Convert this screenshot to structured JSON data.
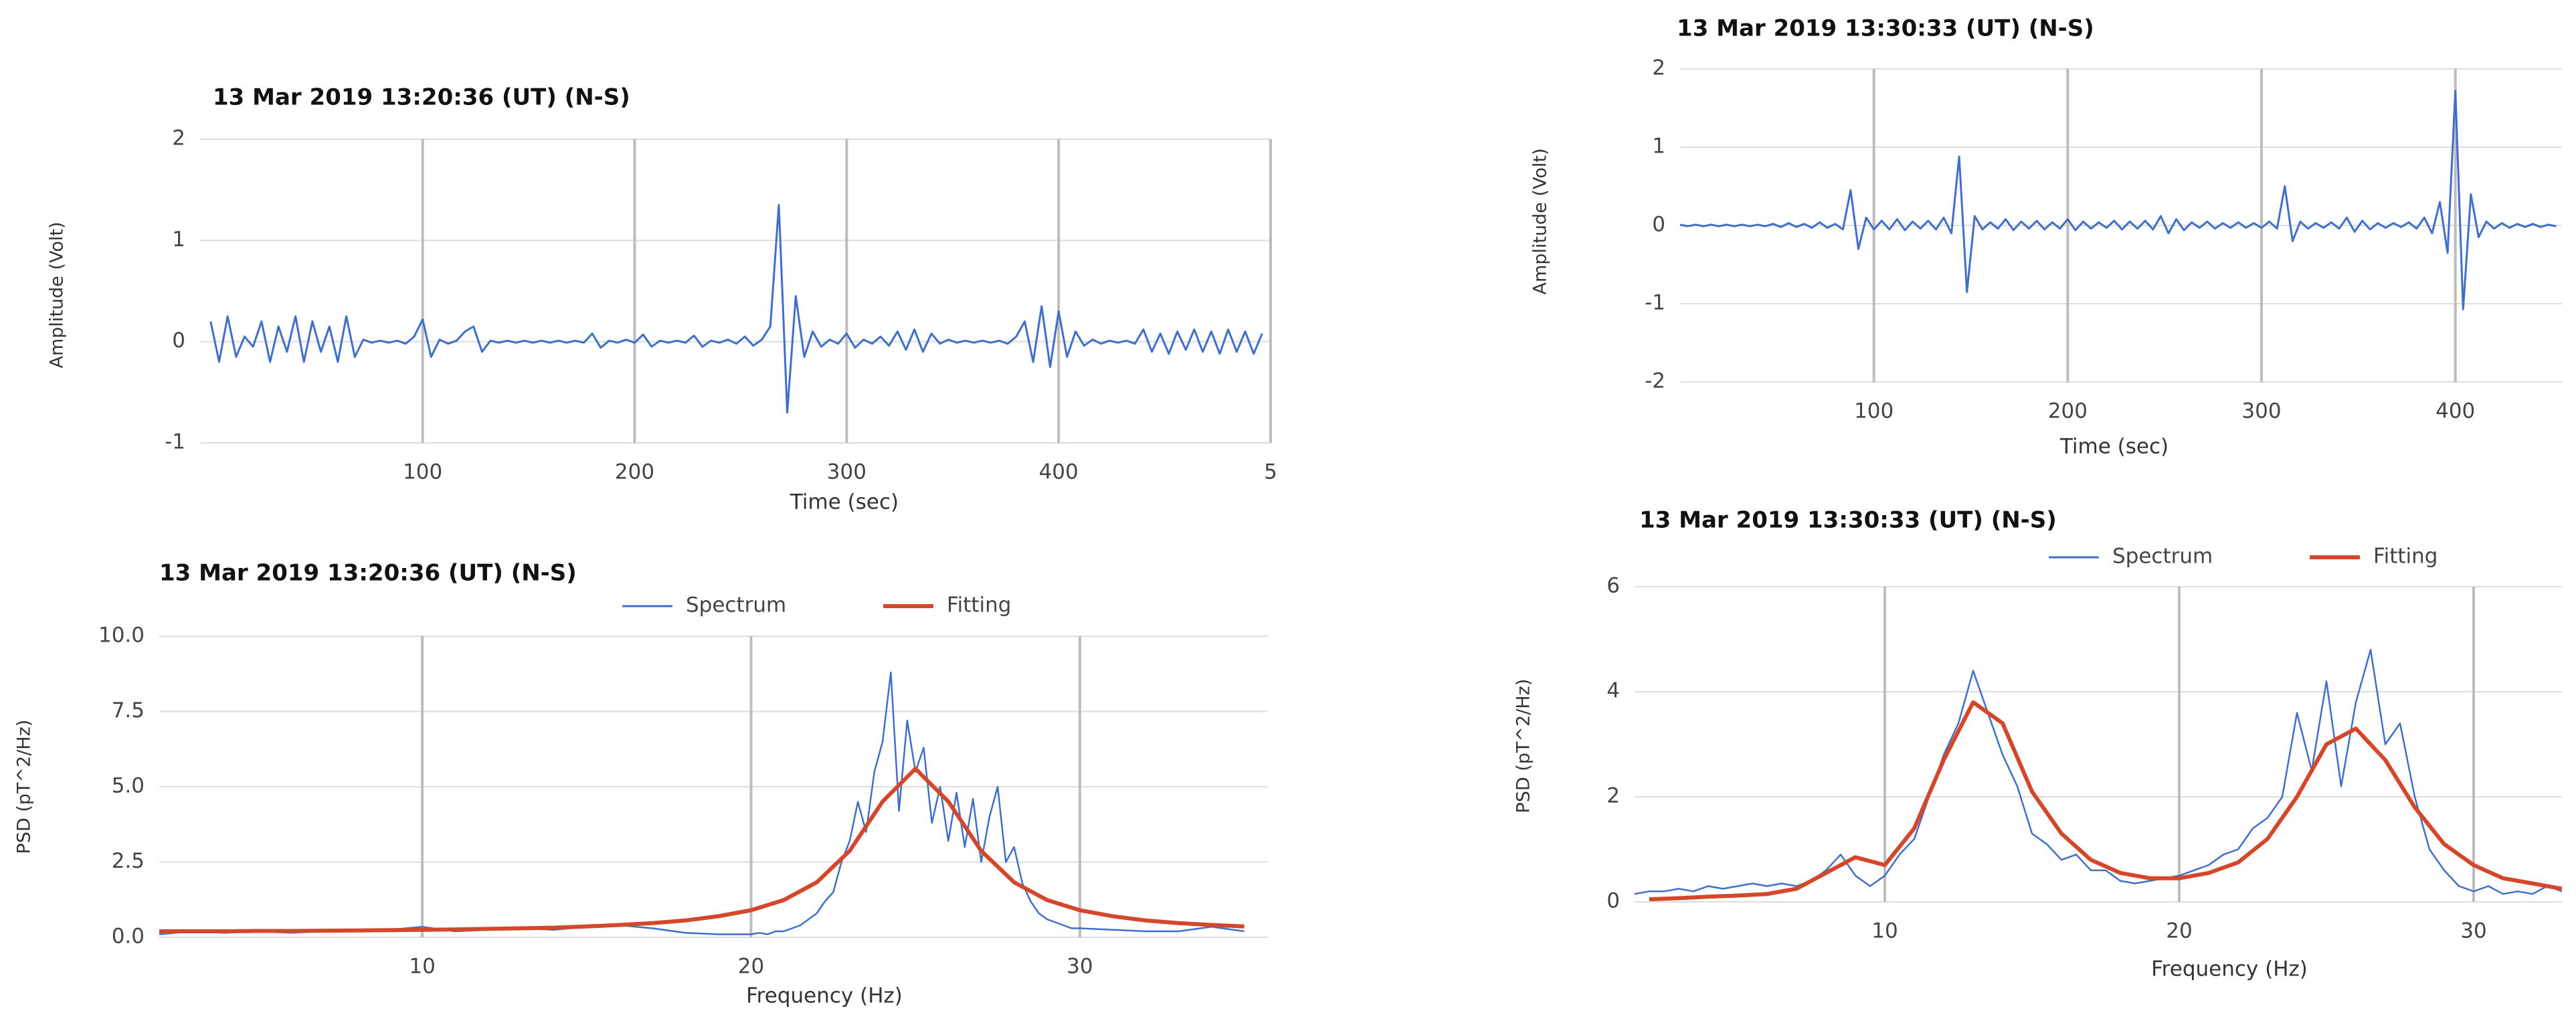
{
  "chart_data": [
    {
      "type": "line",
      "title": "13 Mar 2019  13:20:36 (UT) (N-S)",
      "x_label": "Time (sec)",
      "y_label": "Amplitude (Volt)",
      "color": "#3f6fc9",
      "x": [
        0,
        4,
        8,
        12,
        16,
        20,
        24,
        28,
        32,
        36,
        40,
        44,
        48,
        52,
        56,
        60,
        64,
        68,
        72,
        76,
        80,
        84,
        88,
        92,
        96,
        100,
        104,
        108,
        112,
        116,
        120,
        124,
        128,
        132,
        136,
        140,
        144,
        148,
        152,
        156,
        160,
        164,
        168,
        172,
        176,
        180,
        184,
        188,
        192,
        196,
        200,
        204,
        208,
        212,
        216,
        220,
        224,
        228,
        232,
        236,
        240,
        244,
        248,
        252,
        256,
        260,
        264,
        268,
        272,
        276,
        280,
        284,
        288,
        292,
        296,
        300,
        304,
        308,
        312,
        316,
        320,
        324,
        328,
        332,
        336,
        340,
        344,
        348,
        352,
        356,
        360,
        364,
        368,
        372,
        376,
        380,
        384,
        388,
        392,
        396,
        400,
        404,
        408,
        412,
        416,
        420,
        424,
        428,
        432,
        436,
        440,
        444,
        448,
        452,
        456,
        460,
        464,
        468,
        472,
        476,
        480,
        484,
        488,
        492,
        496
      ],
      "values": [
        0.2,
        -0.2,
        0.25,
        -0.15,
        0.05,
        -0.05,
        0.2,
        -0.2,
        0.15,
        -0.1,
        0.25,
        -0.2,
        0.2,
        -0.1,
        0.15,
        -0.2,
        0.25,
        -0.15,
        0.02,
        -0.01,
        0.01,
        -0.01,
        0.01,
        -0.02,
        0.05,
        0.22,
        -0.15,
        0.02,
        -0.02,
        0.01,
        0.1,
        0.15,
        -0.1,
        0.01,
        -0.01,
        0.01,
        -0.01,
        0.01,
        -0.01,
        0.01,
        -0.01,
        0.01,
        -0.01,
        0.01,
        -0.01,
        0.08,
        -0.06,
        0.01,
        -0.01,
        0.02,
        -0.01,
        0.07,
        -0.05,
        0.01,
        -0.01,
        0.01,
        -0.01,
        0.06,
        -0.05,
        0.01,
        -0.01,
        0.02,
        -0.02,
        0.05,
        -0.04,
        0.02,
        0.15,
        1.35,
        -0.7,
        0.45,
        -0.15,
        0.1,
        -0.05,
        0.02,
        -0.02,
        0.08,
        -0.06,
        0.02,
        -0.02,
        0.05,
        -0.04,
        0.1,
        -0.08,
        0.12,
        -0.1,
        0.08,
        -0.02,
        0.02,
        -0.01,
        0.01,
        -0.01,
        0.01,
        -0.01,
        0.01,
        -0.02,
        0.05,
        0.2,
        -0.2,
        0.35,
        -0.25,
        0.3,
        -0.15,
        0.1,
        -0.04,
        0.02,
        -0.02,
        0.01,
        -0.01,
        0.01,
        -0.02,
        0.12,
        -0.1,
        0.08,
        -0.12,
        0.1,
        -0.08,
        0.12,
        -0.1,
        0.1,
        -0.12,
        0.12,
        -0.1,
        0.1,
        -0.12,
        0.08
      ],
      "xlim": [
        -5,
        500
      ],
      "ylim": [
        -1,
        2
      ],
      "xticks": [
        100,
        200,
        300,
        400,
        {
          "value": 500,
          "label": "5"
        }
      ],
      "yticks": [
        -1,
        0,
        1,
        2
      ],
      "grid": true
    },
    {
      "type": "line",
      "title": "13 Mar 2019  13:30:33 (UT) (N-S)",
      "x_label": "Time (sec)",
      "y_label": "Amplitude (Volt)",
      "color": "#3f6fc9",
      "x": [
        0,
        4,
        8,
        12,
        16,
        20,
        24,
        28,
        32,
        36,
        40,
        44,
        48,
        52,
        56,
        60,
        64,
        68,
        72,
        76,
        80,
        84,
        88,
        92,
        96,
        100,
        104,
        108,
        112,
        116,
        120,
        124,
        128,
        132,
        136,
        140,
        144,
        148,
        152,
        156,
        160,
        164,
        168,
        172,
        176,
        180,
        184,
        188,
        192,
        196,
        200,
        204,
        208,
        212,
        216,
        220,
        224,
        228,
        232,
        236,
        240,
        244,
        248,
        252,
        256,
        260,
        264,
        268,
        272,
        276,
        280,
        284,
        288,
        292,
        296,
        300,
        304,
        308,
        312,
        316,
        320,
        324,
        328,
        332,
        336,
        340,
        344,
        348,
        352,
        356,
        360,
        364,
        368,
        372,
        376,
        380,
        384,
        388,
        392,
        396,
        400,
        404,
        408,
        412,
        416,
        420,
        424,
        428,
        432,
        436,
        440,
        444,
        448,
        452
      ],
      "values": [
        0.01,
        -0.01,
        0.01,
        -0.01,
        0.01,
        -0.01,
        0.01,
        -0.01,
        0.01,
        -0.01,
        0.01,
        -0.01,
        0.02,
        -0.02,
        0.03,
        -0.02,
        0.02,
        -0.03,
        0.04,
        -0.03,
        0.02,
        -0.05,
        0.45,
        -0.3,
        0.1,
        -0.05,
        0.06,
        -0.05,
        0.08,
        -0.06,
        0.05,
        -0.04,
        0.06,
        -0.05,
        0.1,
        -0.1,
        0.88,
        -0.85,
        0.12,
        -0.05,
        0.04,
        -0.04,
        0.08,
        -0.06,
        0.05,
        -0.04,
        0.06,
        -0.05,
        0.04,
        -0.04,
        0.08,
        -0.06,
        0.05,
        -0.04,
        0.04,
        -0.03,
        0.06,
        -0.05,
        0.05,
        -0.04,
        0.06,
        -0.05,
        0.12,
        -0.1,
        0.08,
        -0.06,
        0.04,
        -0.03,
        0.05,
        -0.04,
        0.03,
        -0.03,
        0.04,
        -0.03,
        0.03,
        -0.03,
        0.05,
        -0.04,
        0.5,
        -0.2,
        0.05,
        -0.04,
        0.03,
        -0.03,
        0.04,
        -0.04,
        0.1,
        -0.08,
        0.06,
        -0.05,
        0.03,
        -0.03,
        0.03,
        -0.02,
        0.04,
        -0.04,
        0.1,
        -0.1,
        0.3,
        -0.35,
        1.72,
        -1.07,
        0.4,
        -0.15,
        0.05,
        -0.04,
        0.03,
        -0.03,
        0.02,
        -0.02,
        0.02,
        -0.02,
        0.01,
        -0.01
      ],
      "xlim": [
        0,
        455
      ],
      "ylim": [
        -2,
        2
      ],
      "xticks": [
        100,
        200,
        300,
        400
      ],
      "yticks": [
        -2,
        -1,
        0,
        1,
        2
      ],
      "grid": true
    },
    {
      "type": "line",
      "title": "13 Mar 2019  13:20:36 (UT) (N-S)",
      "x_label": "Frequency (Hz)",
      "y_label": "PSD (pT^2/Hz)",
      "series": [
        {
          "name": "Spectrum",
          "color": "#3f6fc9",
          "x": [
            2,
            3,
            4,
            5,
            6,
            7,
            8,
            9,
            10,
            11,
            12,
            13,
            14,
            15,
            16,
            17,
            18,
            19,
            20,
            20.25,
            20.5,
            20.75,
            21,
            21.25,
            21.5,
            21.75,
            22,
            22.25,
            22.5,
            22.75,
            23,
            23.25,
            23.5,
            23.75,
            24,
            24.25,
            24.5,
            24.75,
            25,
            25.25,
            25.5,
            25.75,
            26,
            26.25,
            26.5,
            26.75,
            27,
            27.25,
            27.5,
            27.75,
            28,
            28.25,
            28.5,
            28.75,
            29,
            29.25,
            29.5,
            29.75,
            30,
            31,
            32,
            33,
            34,
            35
          ],
          "values": [
            0.1,
            0.2,
            0.15,
            0.2,
            0.15,
            0.2,
            0.2,
            0.25,
            0.35,
            0.2,
            0.25,
            0.3,
            0.25,
            0.35,
            0.4,
            0.3,
            0.15,
            0.1,
            0.1,
            0.15,
            0.1,
            0.2,
            0.2,
            0.3,
            0.4,
            0.6,
            0.8,
            1.2,
            1.5,
            2.5,
            3.2,
            4.5,
            3.5,
            5.5,
            6.5,
            8.8,
            4.2,
            7.2,
            5.5,
            6.3,
            3.8,
            5.0,
            3.2,
            4.8,
            3.0,
            4.6,
            2.5,
            4.0,
            5.0,
            2.5,
            3.0,
            1.8,
            1.2,
            0.8,
            0.6,
            0.5,
            0.4,
            0.3,
            0.3,
            0.25,
            0.2,
            0.2,
            0.35,
            0.2
          ]
        },
        {
          "name": "Fitting",
          "color": "#d4472a",
          "x": [
            2,
            3,
            4,
            5,
            6,
            7,
            8,
            9,
            10,
            11,
            12,
            13,
            14,
            15,
            16,
            17,
            18,
            19,
            20,
            21,
            22,
            23,
            24,
            25,
            26,
            27,
            28,
            29,
            30,
            31,
            32,
            33,
            34,
            35
          ],
          "values": [
            0.2,
            0.2,
            0.2,
            0.21,
            0.21,
            0.22,
            0.23,
            0.24,
            0.25,
            0.26,
            0.28,
            0.3,
            0.32,
            0.36,
            0.41,
            0.47,
            0.56,
            0.7,
            0.9,
            1.24,
            1.83,
            2.87,
            4.51,
            5.6,
            4.51,
            2.87,
            1.83,
            1.24,
            0.9,
            0.7,
            0.56,
            0.47,
            0.41,
            0.36
          ]
        }
      ],
      "xlim": [
        2,
        35.7
      ],
      "ylim": [
        0,
        10
      ],
      "xticks": [
        10,
        20,
        30
      ],
      "yticks": [
        {
          "value": 0,
          "label": "0.0"
        },
        {
          "value": 2.5,
          "label": "2.5"
        },
        {
          "value": 5,
          "label": "5.0"
        },
        {
          "value": 7.5,
          "label": "7.5"
        },
        {
          "value": 10,
          "label": "10.0"
        }
      ],
      "grid": true
    },
    {
      "type": "line",
      "title": "13 Mar 2019  13:30:33 (UT) (N-S)",
      "x_label": "Frequency (Hz)",
      "y_label": "PSD (pT^2/Hz)",
      "series": [
        {
          "name": "Spectrum",
          "color": "#3f6fc9",
          "x": [
            1.5,
            2,
            2.5,
            3,
            3.5,
            4,
            4.5,
            5,
            5.5,
            6,
            6.5,
            7,
            7.5,
            8,
            8.5,
            9,
            9.5,
            10,
            10.5,
            11,
            11.5,
            12,
            12.5,
            13,
            13.5,
            14,
            14.5,
            15,
            15.5,
            16,
            16.5,
            17,
            17.5,
            18,
            18.5,
            19,
            19.5,
            20,
            20.5,
            21,
            21.5,
            22,
            22.5,
            23,
            23.5,
            24,
            24.5,
            25,
            25.5,
            26,
            26.5,
            27,
            27.5,
            28,
            28.5,
            29,
            29.5,
            30,
            30.5,
            31,
            31.5,
            32,
            32.5,
            33
          ],
          "values": [
            0.15,
            0.2,
            0.2,
            0.25,
            0.2,
            0.3,
            0.25,
            0.3,
            0.35,
            0.3,
            0.35,
            0.3,
            0.4,
            0.6,
            0.9,
            0.5,
            0.3,
            0.5,
            0.9,
            1.2,
            2.0,
            2.8,
            3.4,
            4.4,
            3.6,
            2.8,
            2.2,
            1.3,
            1.1,
            0.8,
            0.9,
            0.6,
            0.6,
            0.4,
            0.35,
            0.4,
            0.45,
            0.5,
            0.6,
            0.7,
            0.9,
            1.0,
            1.4,
            1.6,
            2.0,
            3.6,
            2.5,
            4.2,
            2.2,
            3.8,
            4.8,
            3.0,
            3.4,
            2.0,
            1.0,
            0.6,
            0.3,
            0.2,
            0.3,
            0.15,
            0.2,
            0.15,
            0.3,
            0.2
          ]
        },
        {
          "name": "Fitting",
          "color": "#d4472a",
          "x": [
            2,
            3,
            4,
            5,
            6,
            7,
            8,
            9,
            10,
            11,
            12,
            13,
            14,
            15,
            16,
            17,
            18,
            19,
            20,
            21,
            22,
            23,
            24,
            25,
            26,
            27,
            28,
            29,
            30,
            31,
            32,
            33
          ],
          "values": [
            0.05,
            0.07,
            0.1,
            0.12,
            0.15,
            0.25,
            0.55,
            0.85,
            0.7,
            1.4,
            2.7,
            3.8,
            3.4,
            2.1,
            1.3,
            0.8,
            0.55,
            0.45,
            0.45,
            0.55,
            0.75,
            1.2,
            2.0,
            3.0,
            3.3,
            2.7,
            1.8,
            1.1,
            0.7,
            0.45,
            0.35,
            0.25
          ]
        }
      ],
      "xlim": [
        1.5,
        33
      ],
      "ylim": [
        0,
        6
      ],
      "xticks": [
        10,
        20,
        30
      ],
      "yticks": [
        0,
        2,
        4,
        6
      ],
      "grid": true
    }
  ]
}
